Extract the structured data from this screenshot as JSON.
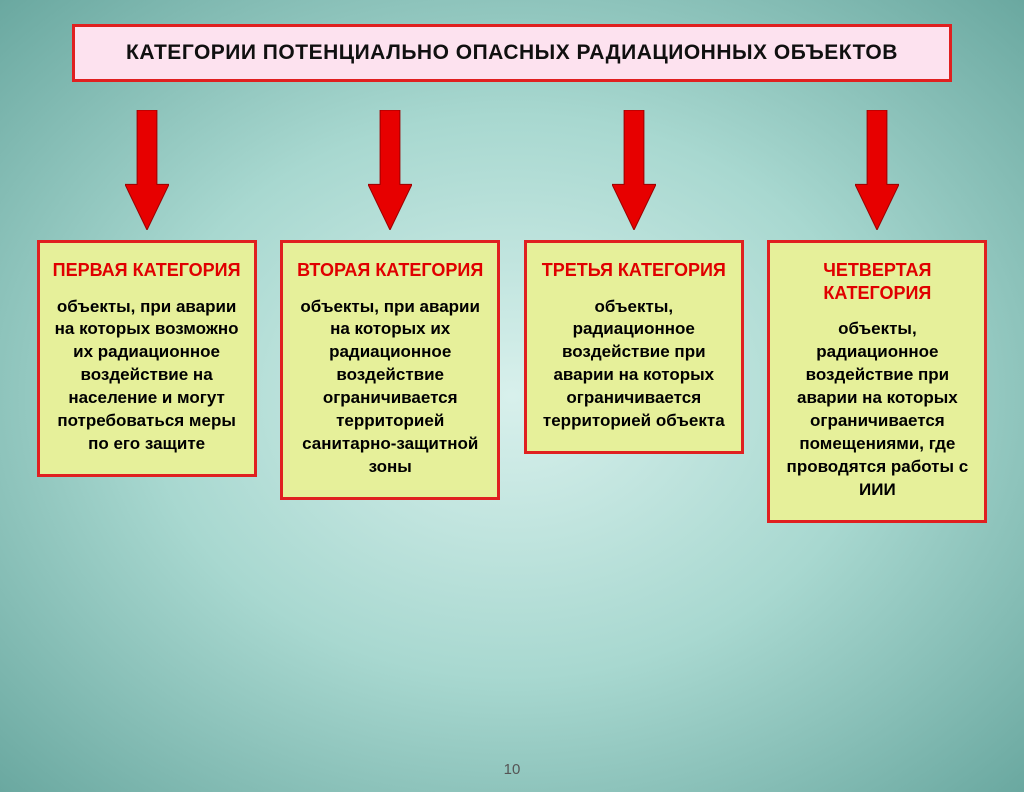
{
  "page_number": "10",
  "title": {
    "text": "КАТЕГОРИИ ПОТЕНЦИАЛЬНО ОПАСНЫХ РАДИАЦИОННЫХ ОБЪЕКТОВ",
    "bg_color": "#fde2ef",
    "border_color": "#e02020",
    "border_width": 3,
    "text_color": "#101010",
    "fontsize": 21
  },
  "arrow": {
    "fill": "#e70000",
    "stroke": "#9a0000",
    "stroke_width": 1,
    "width": 44,
    "height": 120
  },
  "card_style": {
    "bg_color": "#e6f09a",
    "border_color": "#e02020",
    "border_width": 3,
    "body_color": "#000000",
    "body_fontsize": 17,
    "title_fontsize": 18
  },
  "categories": [
    {
      "title": "ПЕРВАЯ КАТЕГОРИЯ",
      "title_color": "#e00000",
      "body": "объекты, при аварии на которых возможно их радиационное воздействие на население и могут потребоваться меры по его защите"
    },
    {
      "title": "ВТОРАЯ КАТЕГОРИЯ",
      "title_color": "#e00000",
      "body": "объекты, при аварии на которых их радиационное воздействие ограничивается территорией санитарно-защитной зоны"
    },
    {
      "title": "ТРЕТЬЯ КАТЕГОРИЯ",
      "title_color": "#e00000",
      "body": "объекты, радиационное воздействие при аварии на которых ограничивается территорией объекта"
    },
    {
      "title": "ЧЕТВЕРТАЯ КАТЕГОРИЯ",
      "title_color": "#e00000",
      "body": "объекты, радиационное воздействие при аварии на которых ограничивается помещениями, где проводятся работы с ИИИ"
    }
  ]
}
